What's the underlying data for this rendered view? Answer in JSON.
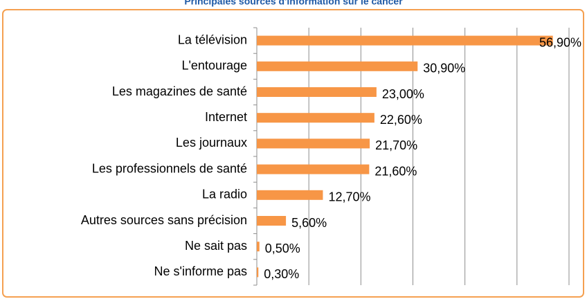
{
  "chart_data": {
    "type": "bar",
    "orientation": "horizontal",
    "title": "Principales sources d'information sur le cancer",
    "categories": [
      "La télévision",
      "L'entourage",
      "Les magazines de santé",
      "Internet",
      "Les journaux",
      "Les professionnels de santé",
      "La radio",
      "Autres sources sans précision",
      "Ne sait pas",
      "Ne s'informe pas"
    ],
    "values": [
      56.9,
      30.9,
      23.0,
      22.6,
      21.7,
      21.6,
      12.7,
      5.6,
      0.5,
      0.3
    ],
    "value_labels": [
      "56,90%",
      "30,90%",
      "23,00%",
      "22,60%",
      "21,70%",
      "21,60%",
      "12,70%",
      "5,60%",
      "0,50%",
      "0,30%"
    ],
    "color": "#f79646",
    "xlim": [
      0,
      60
    ],
    "xticks": [
      0,
      10,
      20,
      30,
      40,
      50,
      60
    ],
    "grid": true
  }
}
